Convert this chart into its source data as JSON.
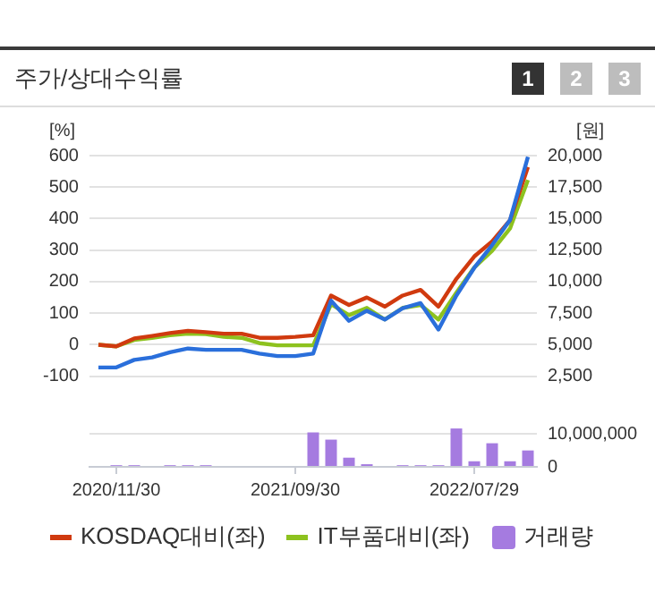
{
  "chart_data": [
    {
      "type": "line",
      "title": "주가/상대수익률",
      "annotations": [
        "1",
        "2",
        "3"
      ],
      "ylabel": "[%]",
      "y2label": "[원]",
      "categories": [
        null,
        "2020/11/30",
        null,
        null,
        null,
        null,
        null,
        null,
        null,
        null,
        null,
        "2021/09/30",
        null,
        null,
        null,
        null,
        null,
        null,
        null,
        null,
        null,
        "2022/07/29",
        null,
        null,
        null
      ],
      "tick_labels": "y",
      "ylim": [
        -115,
        600
      ],
      "yticks": [
        -100,
        0,
        100,
        200,
        300,
        400,
        500,
        600
      ],
      "y2lim": [
        2125,
        20000
      ],
      "y2ticks": [
        {
          "value": 2500,
          "label": "2,500"
        },
        {
          "value": 5000,
          "label": "5,000"
        },
        {
          "value": 7500,
          "label": "7,500"
        },
        {
          "value": 10000,
          "label": "10,000"
        },
        {
          "value": 12500,
          "label": "12,500"
        },
        {
          "value": 15000,
          "label": "15,000"
        },
        {
          "value": 17500,
          "label": "17,500"
        },
        {
          "value": 20000,
          "label": "20,000"
        }
      ],
      "grid": "y",
      "legend": "bottom",
      "marker": "none",
      "line_style": "solid",
      "series": [
        {
          "color": "#2a6fdb",
          "axis": "y2",
          "values": [
            3200,
            3200,
            3800,
            4000,
            4400,
            4700,
            4600,
            4600,
            4600,
            4300,
            4100,
            4100,
            4300,
            8500,
            6900,
            7700,
            7000,
            7900,
            8300,
            6200,
            8900,
            11100,
            12900,
            14900,
            19900
          ]
        },
        {
          "name": "KOSDAQ대비(좌)",
          "color": "#d03a0f",
          "values": [
            0,
            -5,
            20,
            28,
            37,
            44,
            40,
            35,
            35,
            22,
            22,
            25,
            30,
            156,
            126,
            150,
            121,
            156,
            174,
            121,
            209,
            280,
            328,
            395,
            564
          ]
        },
        {
          "name": "IT부품대비(좌)",
          "color": "#8dc21f",
          "values": [
            0,
            -5,
            15,
            22,
            30,
            35,
            34,
            25,
            22,
            5,
            -2,
            -2,
            -2,
            129,
            94,
            117,
            80,
            117,
            126,
            80,
            165,
            245,
            298,
            369,
            523
          ]
        }
      ]
    },
    {
      "type": "bar",
      "categories": [
        null,
        "2020/11/30",
        null,
        null,
        null,
        null,
        null,
        null,
        null,
        null,
        null,
        "2021/09/30",
        null,
        null,
        null,
        null,
        null,
        null,
        null,
        null,
        null,
        "2022/07/29",
        null,
        null,
        null
      ],
      "y2lim": [
        0,
        12000000
      ],
      "y2ticks": [
        0,
        {
          "value": 10000000,
          "label": "10,000,000"
        }
      ],
      "grid": "y",
      "legend": "bottom",
      "series": [
        {
          "name": "거래량",
          "color": "#a57be0",
          "axis": "y2",
          "values": [
            0,
            500000,
            500000,
            0,
            500000,
            500000,
            500000,
            0,
            0,
            0,
            0,
            0,
            10500000,
            8300000,
            2800000,
            800000,
            0,
            500000,
            500000,
            500000,
            11700000,
            1700000,
            7200000,
            1700000,
            5000000
          ]
        }
      ]
    }
  ]
}
